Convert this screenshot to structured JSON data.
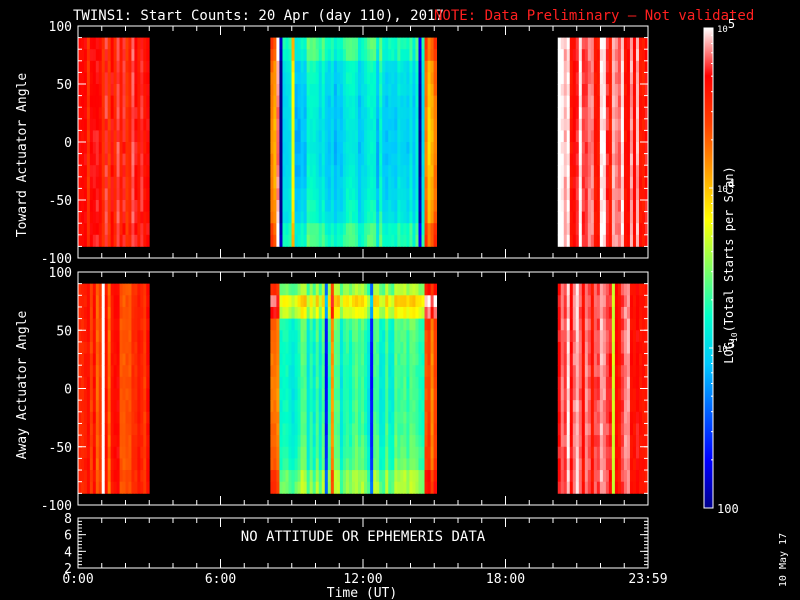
{
  "header": {
    "title": "TWINS1: Start Counts: 20 Apr (day 110), 2017",
    "note": "NOTE: Data Preliminary — Not validated",
    "title_color": "#ffffff",
    "note_color": "#ff2020"
  },
  "side_date": "10 May 17",
  "colorbar": {
    "label_main": "LOG",
    "label_sub": "10",
    "label_rest": "(Total Starts per Scan)",
    "ticks": [
      {
        "label": "10",
        "sup": "5",
        "value": 100000
      },
      {
        "label": "10",
        "sup": "4",
        "value": 10000
      },
      {
        "label": "10",
        "sup": "3",
        "value": 1000
      },
      {
        "label": "100",
        "sup": "",
        "value": 100
      }
    ],
    "range": [
      100,
      100000
    ],
    "scale": "log",
    "colormap": [
      "#00008c",
      "#0000ff",
      "#0060ff",
      "#00c8ff",
      "#00ffc8",
      "#80ff60",
      "#ffff00",
      "#ffa000",
      "#ff4000",
      "#ff0000",
      "#ffffff"
    ]
  },
  "x_axis": {
    "label": "Time (UT)",
    "ticks": [
      "0:00",
      "6:00",
      "12:00",
      "18:00",
      "23:59"
    ],
    "range_hours": [
      0,
      24
    ]
  },
  "chart_data": [
    {
      "type": "heatmap",
      "ylabel": "Toward Actuator Angle",
      "ylim": [
        -100,
        100
      ],
      "yticks": [
        "100",
        "50",
        "0",
        "-50",
        "-100"
      ],
      "data_ylim": [
        -90,
        90
      ],
      "segments": [
        {
          "start_hour": 0.0,
          "end_hour": 3.0,
          "level": "high",
          "approx_counts": 40000
        },
        {
          "start_hour": 8.1,
          "end_hour": 15.1,
          "level": "medium",
          "approx_counts": 1500
        },
        {
          "start_hour": 20.2,
          "end_hour": 24.0,
          "level": "high",
          "approx_counts": 60000
        }
      ]
    },
    {
      "type": "heatmap",
      "ylabel": "Away Actuator Angle",
      "ylim": [
        -100,
        100
      ],
      "yticks": [
        "100",
        "50",
        "0",
        "-50",
        "-100"
      ],
      "data_ylim": [
        -90,
        90
      ],
      "segments": [
        {
          "start_hour": 0.0,
          "end_hour": 3.0,
          "level": "high",
          "approx_counts": 30000
        },
        {
          "start_hour": 8.1,
          "end_hour": 15.1,
          "level": "medium",
          "approx_counts": 2500
        },
        {
          "start_hour": 20.2,
          "end_hour": 24.0,
          "level": "high",
          "approx_counts": 60000
        }
      ]
    },
    {
      "type": "line",
      "ylabel": "",
      "ylim": [
        2,
        8
      ],
      "yticks": [
        "8",
        "6",
        "4",
        "2"
      ],
      "message": "NO ATTITUDE OR EPHEMERIS DATA"
    }
  ]
}
